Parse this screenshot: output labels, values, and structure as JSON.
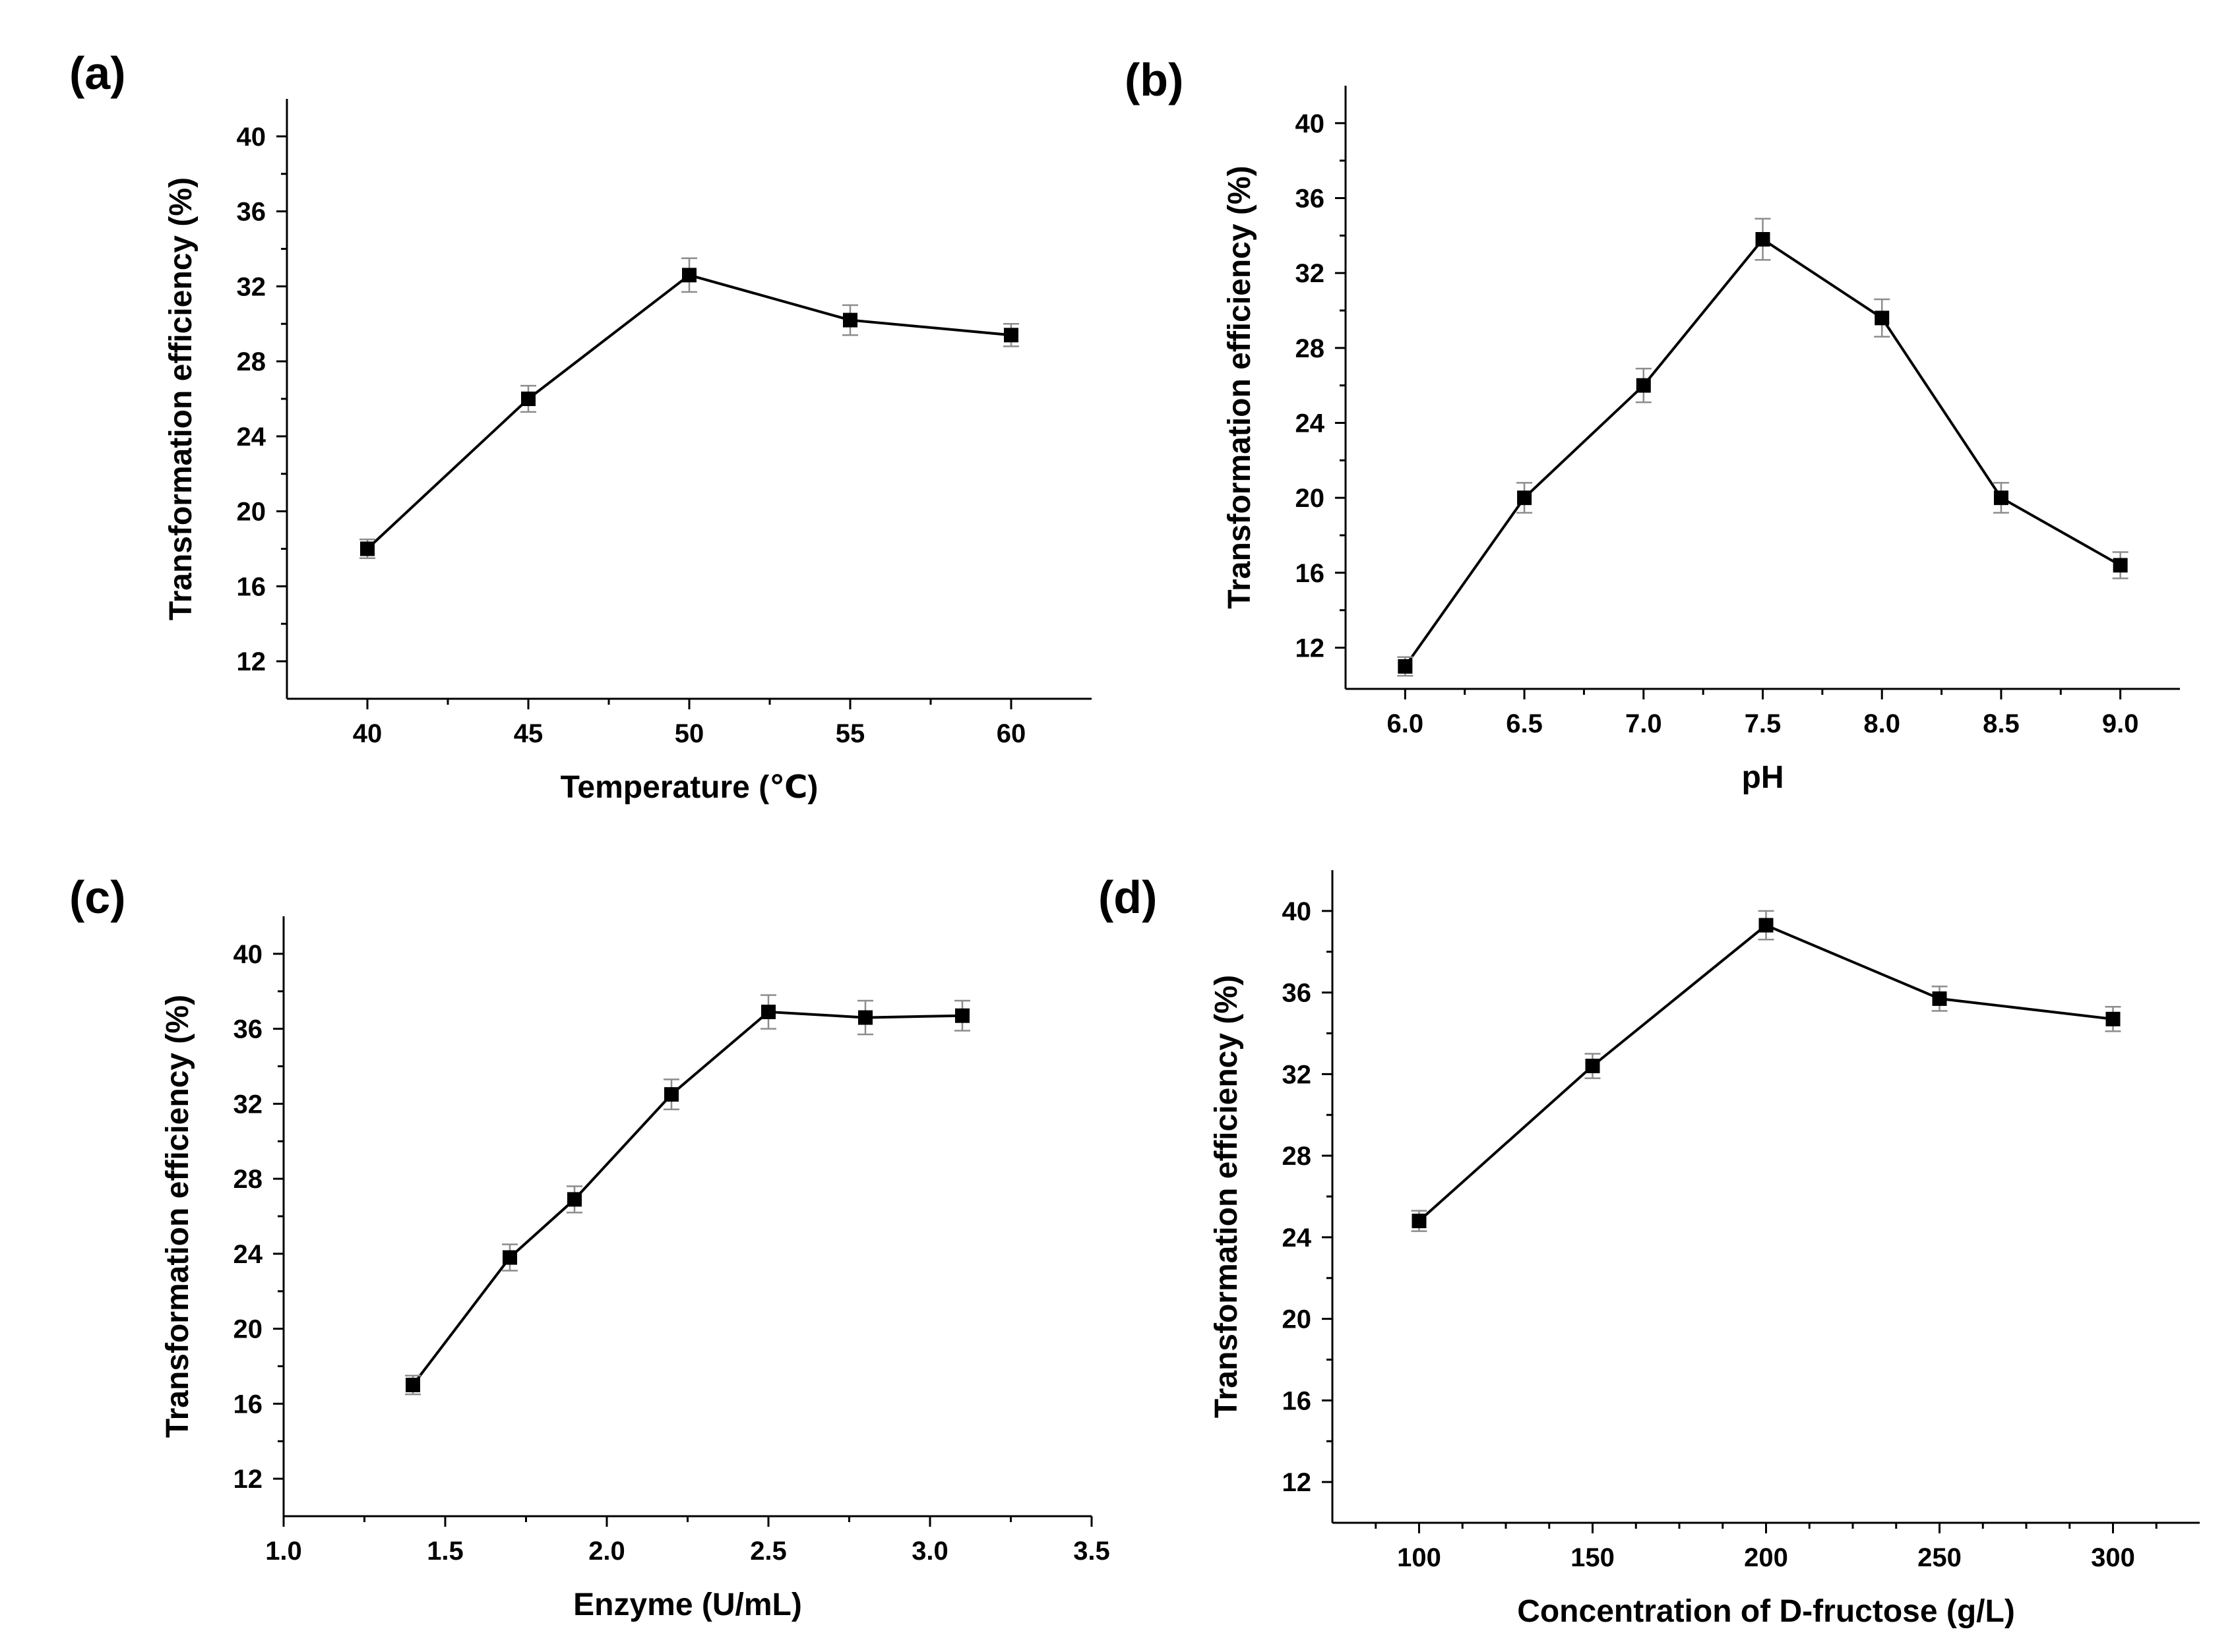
{
  "figure": {
    "background": "#ffffff",
    "line_color": "#000000",
    "errorbar_color": "#8c8c8c"
  },
  "chart_data": [
    {
      "panel": "(a)",
      "type": "line",
      "marker": "square",
      "xlabel": "Temperature (℃)",
      "ylabel": "Transformation efficiency (%)",
      "xlim": [
        37.5,
        62.5
      ],
      "ylim": [
        10,
        42
      ],
      "xticks": [
        40,
        45,
        50,
        55,
        60
      ],
      "xtick_labels": [
        "40",
        "45",
        "50",
        "55",
        "60"
      ],
      "xminor": [
        42.5,
        47.5,
        52.5,
        57.5
      ],
      "yticks": [
        12,
        16,
        20,
        24,
        28,
        32,
        36,
        40
      ],
      "ytick_labels": [
        "12",
        "16",
        "20",
        "24",
        "28",
        "32",
        "36",
        "40"
      ],
      "yminor": [
        14,
        18,
        22,
        26,
        30,
        34,
        38
      ],
      "x": [
        40,
        45,
        50,
        55,
        60
      ],
      "y": [
        18.0,
        26.0,
        32.6,
        30.2,
        29.4
      ],
      "error": [
        0.5,
        0.7,
        0.9,
        0.8,
        0.6
      ]
    },
    {
      "panel": "(b)",
      "type": "line",
      "marker": "square",
      "xlabel": "pH",
      "ylabel": "Transformation efficiency (%)",
      "xlim": [
        5.75,
        9.25
      ],
      "ylim": [
        9.8,
        42
      ],
      "xticks": [
        6.0,
        6.5,
        7.0,
        7.5,
        8.0,
        8.5,
        9.0
      ],
      "xtick_labels": [
        "6.0",
        "6.5",
        "7.0",
        "7.5",
        "8.0",
        "8.5",
        "9.0"
      ],
      "xminor": [
        6.25,
        6.75,
        7.25,
        7.75,
        8.25,
        8.75
      ],
      "yticks": [
        12,
        16,
        20,
        24,
        28,
        32,
        36,
        40
      ],
      "ytick_labels": [
        "12",
        "16",
        "20",
        "24",
        "28",
        "32",
        "36",
        "40"
      ],
      "yminor": [
        14,
        18,
        22,
        26,
        30,
        34,
        38
      ],
      "x": [
        6.0,
        6.5,
        7.0,
        7.5,
        8.0,
        8.5,
        9.0
      ],
      "y": [
        11.0,
        20.0,
        26.0,
        33.8,
        29.6,
        20.0,
        16.4
      ],
      "error": [
        0.5,
        0.8,
        0.9,
        1.1,
        1.0,
        0.8,
        0.7
      ]
    },
    {
      "panel": "(c)",
      "type": "line",
      "marker": "square",
      "xlabel": "Enzyme (U/mL)",
      "ylabel": "Transformation efficiency (%)",
      "xlim": [
        1.0,
        3.5
      ],
      "ylim": [
        10,
        42
      ],
      "xticks": [
        1.0,
        1.5,
        2.0,
        2.5,
        3.0,
        3.5
      ],
      "xtick_labels": [
        "1.0",
        "1.5",
        "2.0",
        "2.5",
        "3.0",
        "3.5"
      ],
      "xminor": [
        1.25,
        1.75,
        2.25,
        2.75,
        3.25
      ],
      "yticks": [
        12,
        16,
        20,
        24,
        28,
        32,
        36,
        40
      ],
      "ytick_labels": [
        "12",
        "16",
        "20",
        "24",
        "28",
        "32",
        "36",
        "40"
      ],
      "yminor": [
        14,
        18,
        22,
        26,
        30,
        34,
        38
      ],
      "x": [
        1.4,
        1.7,
        1.9,
        2.2,
        2.5,
        2.8,
        3.1
      ],
      "y": [
        17.0,
        23.8,
        26.9,
        32.5,
        36.9,
        36.6,
        36.7
      ],
      "error": [
        0.5,
        0.7,
        0.7,
        0.8,
        0.9,
        0.9,
        0.8
      ]
    },
    {
      "panel": "(d)",
      "type": "line",
      "marker": "square",
      "xlabel": "Concentration of D-fructose (g/L)",
      "ylabel": "Transformation efficiency (%)",
      "xlim": [
        75,
        325
      ],
      "ylim": [
        10,
        42
      ],
      "xticks": [
        100,
        150,
        200,
        250,
        300
      ],
      "xtick_labels": [
        "100",
        "150",
        "200",
        "250",
        "300"
      ],
      "xminor": [
        87.5,
        112.5,
        125,
        137.5,
        162.5,
        175,
        187.5,
        212.5,
        225,
        237.5,
        262.5,
        275,
        287.5,
        312.5
      ],
      "yticks": [
        12,
        16,
        20,
        24,
        28,
        32,
        36,
        40
      ],
      "ytick_labels": [
        "12",
        "16",
        "20",
        "24",
        "28",
        "32",
        "36",
        "40"
      ],
      "yminor": [
        14,
        18,
        22,
        26,
        30,
        34,
        38
      ],
      "x": [
        100,
        150,
        200,
        250,
        300
      ],
      "y": [
        24.8,
        32.4,
        39.3,
        35.7,
        34.7
      ],
      "error": [
        0.5,
        0.6,
        0.7,
        0.6,
        0.6
      ]
    }
  ]
}
